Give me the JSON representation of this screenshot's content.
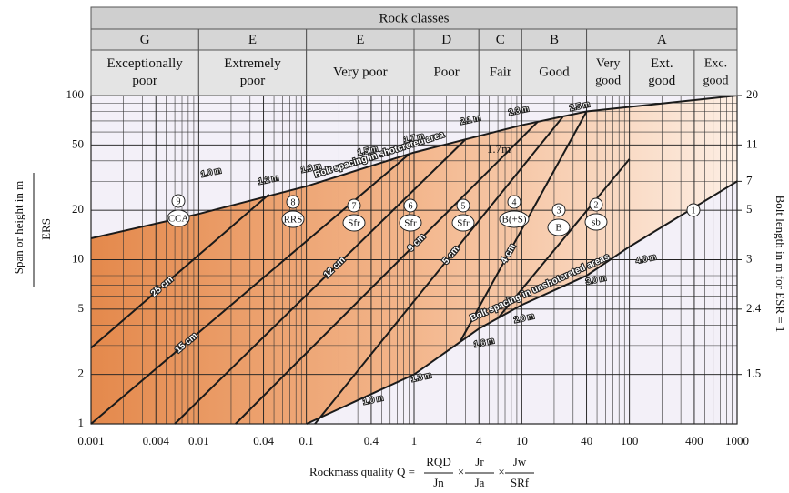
{
  "chart_data": {
    "type": "line",
    "log": true,
    "grid": true,
    "header": {
      "title": "Rock classes",
      "groups": [
        {
          "letter": "G",
          "from": 0.001,
          "to": 0.01,
          "classes": [
            {
              "lines": [
                "Exceptionally",
                "poor"
              ],
              "from": 0.001,
              "to": 0.01
            }
          ]
        },
        {
          "letter": "E",
          "from": 0.01,
          "to": 0.1,
          "classes": [
            {
              "lines": [
                "Extremely",
                "poor"
              ],
              "from": 0.01,
              "to": 0.1
            }
          ]
        },
        {
          "letter": "E",
          "from": 0.1,
          "to": 1,
          "classes": [
            {
              "lines": [
                "Very poor"
              ],
              "from": 0.1,
              "to": 1
            }
          ]
        },
        {
          "letter": "D",
          "from": 1,
          "to": 4,
          "classes": [
            {
              "lines": [
                "Poor"
              ],
              "from": 1,
              "to": 4
            }
          ]
        },
        {
          "letter": "C",
          "from": 4,
          "to": 10,
          "classes": [
            {
              "lines": [
                "Fair"
              ],
              "from": 4,
              "to": 10
            }
          ]
        },
        {
          "letter": "B",
          "from": 10,
          "to": 40,
          "classes": [
            {
              "lines": [
                "Good"
              ],
              "from": 10,
              "to": 40
            }
          ]
        },
        {
          "letter": "A",
          "from": 40,
          "to": 1000,
          "classes": [
            {
              "lines": [
                "Very",
                "good"
              ],
              "from": 40,
              "to": 100
            },
            {
              "lines": [
                "Ext.",
                "good"
              ],
              "from": 100,
              "to": 400
            },
            {
              "lines": [
                "Exc.",
                "good"
              ],
              "from": 400,
              "to": 1000
            }
          ]
        }
      ]
    },
    "xlim": [
      0.001,
      1000
    ],
    "xticks": [
      0.001,
      0.004,
      0.01,
      0.04,
      0.1,
      0.4,
      1,
      4,
      10,
      40,
      100,
      400,
      1000
    ],
    "ylim": [
      1,
      100
    ],
    "yticks": [
      1,
      2,
      5,
      10,
      20,
      50,
      100
    ],
    "y2ticks": [
      {
        "value": 100,
        "label": "20"
      },
      {
        "value": 50,
        "label": "11"
      },
      {
        "value": 30,
        "label": "7"
      },
      {
        "value": 20,
        "label": "5"
      },
      {
        "value": 10,
        "label": "3"
      },
      {
        "value": 5,
        "label": "2.4"
      },
      {
        "value": 2,
        "label": "1.5"
      }
    ],
    "ylabel": "Span or height in m",
    "ylabel_denominator": "ERS",
    "y2label": "Bolt length in m for ESR = 1",
    "xlabel": {
      "prefix": "Rockmass quality Q =",
      "operator": "×",
      "fractions": [
        [
          "RQD",
          "Jn"
        ],
        [
          "Jr",
          "Ja"
        ],
        [
          "Jw",
          "SRf"
        ]
      ]
    },
    "series": [
      {
        "name": "Bolt spacing in shotcreted area",
        "color": "#1a1a1a",
        "x": [
          0.001,
          0.01,
          0.1,
          1,
          10,
          40,
          1000
        ],
        "values": [
          13.5,
          19,
          28,
          45,
          66,
          80,
          100
        ]
      },
      {
        "name": "Bolt spacing in unshotcreted areas",
        "color": "#1a1a1a",
        "x": [
          0.1,
          1,
          4,
          10,
          40,
          100,
          1000
        ],
        "values": [
          1,
          2,
          3.8,
          5.3,
          8,
          12,
          30
        ]
      },
      {
        "name": "25 cm",
        "color": "#1a1a1a",
        "x": [
          0.001,
          0.045
        ],
        "values": [
          2.9,
          25
        ]
      },
      {
        "name": "15 cm",
        "color": "#1a1a1a",
        "x": [
          0.001,
          0.9
        ],
        "values": [
          1,
          44
        ]
      },
      {
        "name": "12 cm",
        "color": "#1a1a1a",
        "x": [
          0.006,
          3
        ],
        "values": [
          1,
          54
        ]
      },
      {
        "name": "9 cm",
        "color": "#1a1a1a",
        "x": [
          0.022,
          14
        ],
        "values": [
          1,
          69
        ]
      },
      {
        "name": "5 cm",
        "color": "#1a1a1a",
        "x": [
          0.12,
          24
        ],
        "values": [
          1,
          74
        ]
      },
      {
        "name": "4 cm",
        "color": "#1a1a1a",
        "x": [
          2.7,
          40
        ],
        "values": [
          3.2,
          80
        ]
      },
      {
        "color": "#1a1a1a",
        "x": [
          6,
          100
        ],
        "values": [
          4.4,
          41
        ]
      }
    ],
    "support_classes": [
      {
        "number": 9,
        "support": "CCA"
      },
      {
        "number": 8,
        "support": "RRS"
      },
      {
        "number": 7,
        "support": "Sfr"
      },
      {
        "number": 6,
        "support": "Sfr"
      },
      {
        "number": 5,
        "support": "Sfr"
      },
      {
        "number": 4,
        "support": "B(+S)"
      },
      {
        "number": 3,
        "support": "B"
      },
      {
        "number": 2,
        "support": "sb"
      },
      {
        "number": 1
      }
    ],
    "spacing_labels": [
      "1.0 m",
      "1.2 m",
      "1.3 m",
      "1.5 m",
      "1.7 m",
      "2.1 m",
      "2.3 m",
      "2.5 m",
      "1.7m",
      "4.0 m",
      "3.0 m",
      "2.0 m",
      "1.6 m",
      "1.3 m",
      "1.0 m"
    ]
  }
}
